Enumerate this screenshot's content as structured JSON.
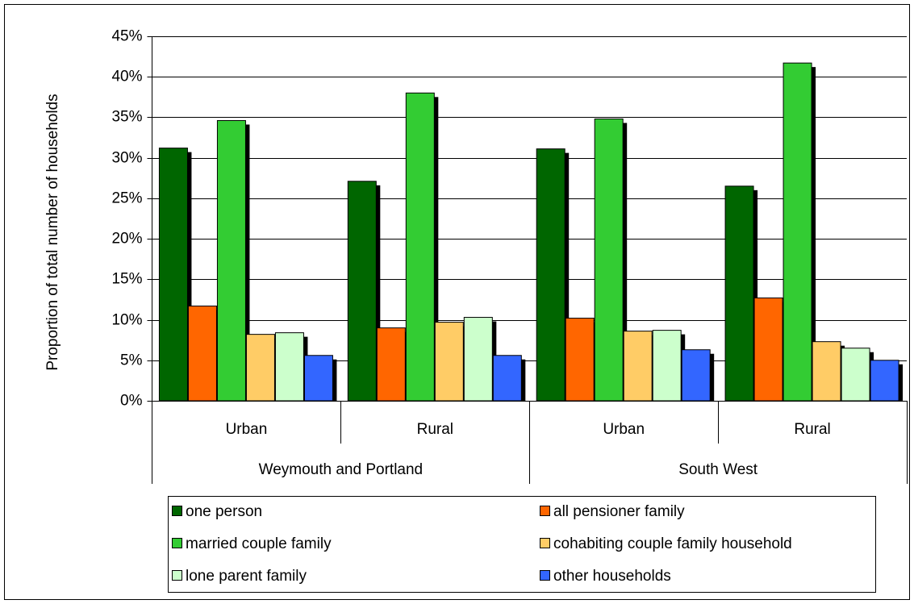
{
  "chart_data": {
    "type": "bar",
    "y_label": "Proportion of total number of households",
    "category_groups": [
      {
        "name": "Weymouth and Portland",
        "categories": [
          "Urban",
          "Rural"
        ]
      },
      {
        "name": "South West",
        "categories": [
          "Urban",
          "Rural"
        ]
      }
    ],
    "series": [
      {
        "name": "one person",
        "color": "#006600",
        "values": [
          31.2,
          27.1,
          31.1,
          26.5
        ]
      },
      {
        "name": "all pensioner family",
        "color": "#ff6600",
        "values": [
          11.7,
          9.0,
          10.2,
          12.7
        ]
      },
      {
        "name": "married couple family",
        "color": "#33cc33",
        "values": [
          34.6,
          38.0,
          34.8,
          41.7
        ]
      },
      {
        "name": "cohabiting couple family household",
        "color": "#ffcc66",
        "values": [
          8.2,
          9.7,
          8.6,
          7.3
        ]
      },
      {
        "name": "lone parent family",
        "color": "#ccffcc",
        "values": [
          8.4,
          10.3,
          8.7,
          6.5
        ]
      },
      {
        "name": "other households",
        "color": "#3366ff",
        "values": [
          5.6,
          5.6,
          6.3,
          5.0
        ]
      }
    ],
    "ylim": [
      0,
      45
    ],
    "yticks": [
      {
        "value": 0,
        "label": "0%"
      },
      {
        "value": 5,
        "label": "5%"
      },
      {
        "value": 10,
        "label": "10%"
      },
      {
        "value": 15,
        "label": "15%"
      },
      {
        "value": 20,
        "label": "20%"
      },
      {
        "value": 25,
        "label": "25%"
      },
      {
        "value": 30,
        "label": "30%"
      },
      {
        "value": 35,
        "label": "35%"
      },
      {
        "value": 40,
        "label": "40%"
      },
      {
        "value": 45,
        "label": "45%"
      }
    ],
    "grid": true,
    "legend": "bottom"
  }
}
